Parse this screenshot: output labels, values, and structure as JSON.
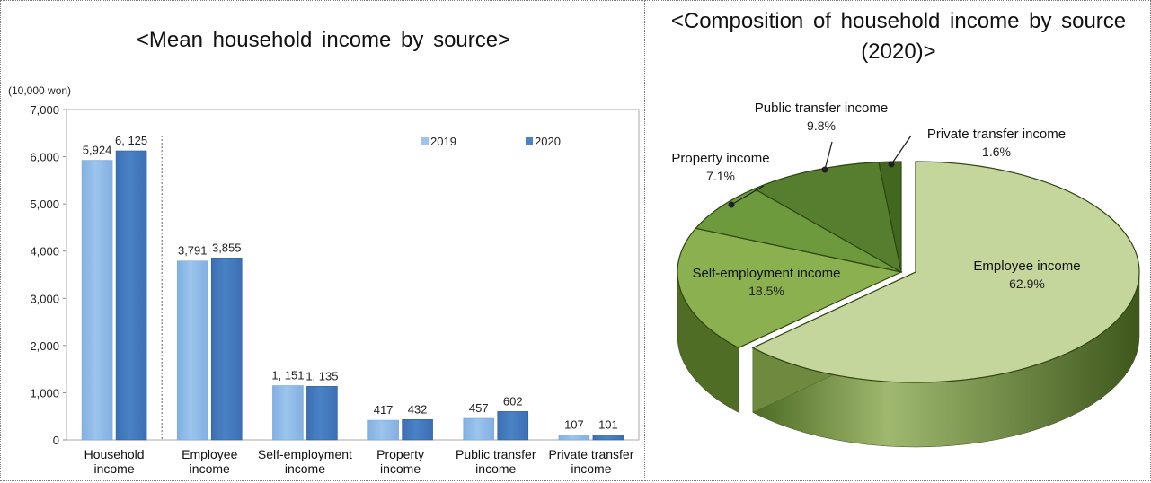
{
  "bar_title": "<Mean household income by source>",
  "pie_title": "<Composition of household income by source (2020)>",
  "colors": {
    "y2019": "#9cc4ec",
    "y2020": "#4a82c6",
    "pie_employee": "#c4d69c",
    "pie_self": "#8ab050",
    "pie_property": "#6e9a3e",
    "pie_public": "#557f2e",
    "pie_private": "#42671f"
  },
  "chart_data": [
    {
      "type": "bar",
      "title": "<Mean household income by source>",
      "ylabel": "(10,000 won)",
      "ylim": [
        0,
        7000
      ],
      "yticks": [
        "0",
        "1,000",
        "2,000",
        "3,000",
        "4,000",
        "5,000",
        "6,000",
        "7,000"
      ],
      "categories": [
        [
          "Household",
          "income"
        ],
        [
          "Employee",
          "income"
        ],
        [
          "Self-employment",
          "income"
        ],
        [
          "Property",
          "income"
        ],
        [
          "Public transfer",
          "income"
        ],
        [
          "Private transfer",
          "income"
        ]
      ],
      "series": [
        {
          "name": "2019",
          "values": [
            5924,
            3791,
            1151,
            417,
            457,
            107
          ],
          "labels": [
            "5,924",
            "3,791",
            "1, 151",
            "417",
            "457",
            "107"
          ]
        },
        {
          "name": "2020",
          "values": [
            6125,
            3855,
            1135,
            432,
            602,
            101
          ],
          "labels": [
            "6, 125",
            "3,855",
            "1, 135",
            "432",
            "602",
            "101"
          ]
        }
      ],
      "legend": "top-right",
      "grid": false
    },
    {
      "type": "pie",
      "title": "<Composition of household income by source (2020)>",
      "slices": [
        {
          "label": "Employee income",
          "value": 62.9,
          "text": "62.9%"
        },
        {
          "label": "Self-employment income",
          "value": 18.5,
          "text": "18.5%"
        },
        {
          "label": "Property income",
          "value": 7.1,
          "text": "7.1%"
        },
        {
          "label": "Public transfer income",
          "value": 9.8,
          "text": "9.8%"
        },
        {
          "label": "Private transfer income",
          "value": 1.6,
          "text": "1.6%"
        }
      ]
    }
  ]
}
